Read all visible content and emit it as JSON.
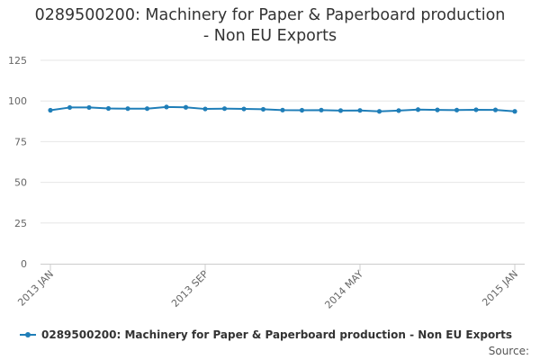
{
  "chart_data": {
    "type": "line",
    "title_line1": "0289500200: Machinery for Paper & Paperboard production",
    "title_line2": "- Non EU Exports",
    "xlabel": "",
    "ylabel": "",
    "ylim": [
      0,
      125
    ],
    "y_ticks": [
      "0",
      "25",
      "50",
      "75",
      "100",
      "125"
    ],
    "x_tick_labels": [
      {
        "label": "2013 JAN",
        "at": "2013-01"
      },
      {
        "label": "2013 SEP",
        "at": "2013-09"
      },
      {
        "label": "2014 MAY",
        "at": "2014-05"
      },
      {
        "label": "2015 JAN",
        "at": "2015-01"
      }
    ],
    "x": [
      "2013-01",
      "2013-02",
      "2013-03",
      "2013-04",
      "2013-05",
      "2013-06",
      "2013-07",
      "2013-08",
      "2013-09",
      "2013-10",
      "2013-11",
      "2013-12",
      "2014-01",
      "2014-02",
      "2014-03",
      "2014-04",
      "2014-05",
      "2014-06",
      "2014-07",
      "2014-08",
      "2014-09",
      "2014-10",
      "2014-11",
      "2014-12",
      "2015-01"
    ],
    "series": [
      {
        "name": "0289500200: Machinery for Paper & Paperboard production - Non EU Exports",
        "color": "#1f7eb8",
        "values": [
          94.3,
          96.0,
          96.0,
          95.4,
          95.3,
          95.3,
          96.3,
          96.1,
          95.1,
          95.3,
          95.1,
          94.9,
          94.4,
          94.3,
          94.4,
          94.1,
          94.2,
          93.6,
          94.1,
          94.7,
          94.5,
          94.4,
          94.6,
          94.5,
          93.6
        ]
      }
    ],
    "grid": true,
    "legend_position": "bottom"
  },
  "source_label": "Source:"
}
